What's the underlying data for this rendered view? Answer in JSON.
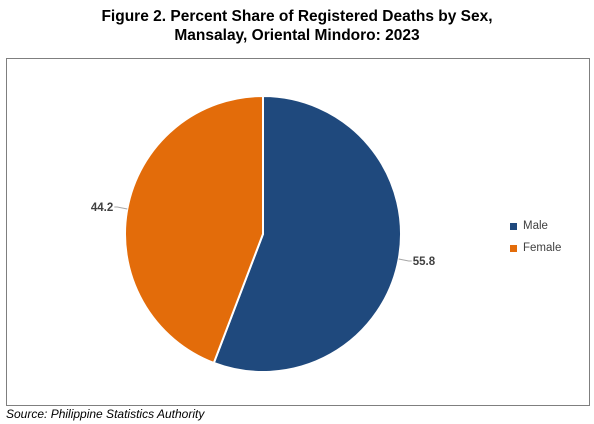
{
  "title": {
    "line1": "Figure 2. Percent Share of Registered Deaths by Sex,",
    "line2": "Mansalay, Oriental Mindoro: 2023"
  },
  "source": "Source: Philippine Statistics Authority",
  "chart_data": {
    "type": "pie",
    "title": "Figure 2. Percent Share of Registered Deaths by Sex, Mansalay, Oriental Mindoro: 2023",
    "categories": [
      "Male",
      "Female"
    ],
    "values": [
      55.8,
      44.2
    ],
    "data_labels": [
      "55.8",
      "44.2"
    ],
    "colors": [
      "#1f497d",
      "#e36c0a"
    ],
    "start_angle_deg": 0,
    "direction": "clockwise",
    "legend": {
      "placement": "right",
      "entries": [
        "Male",
        "Female"
      ]
    }
  }
}
